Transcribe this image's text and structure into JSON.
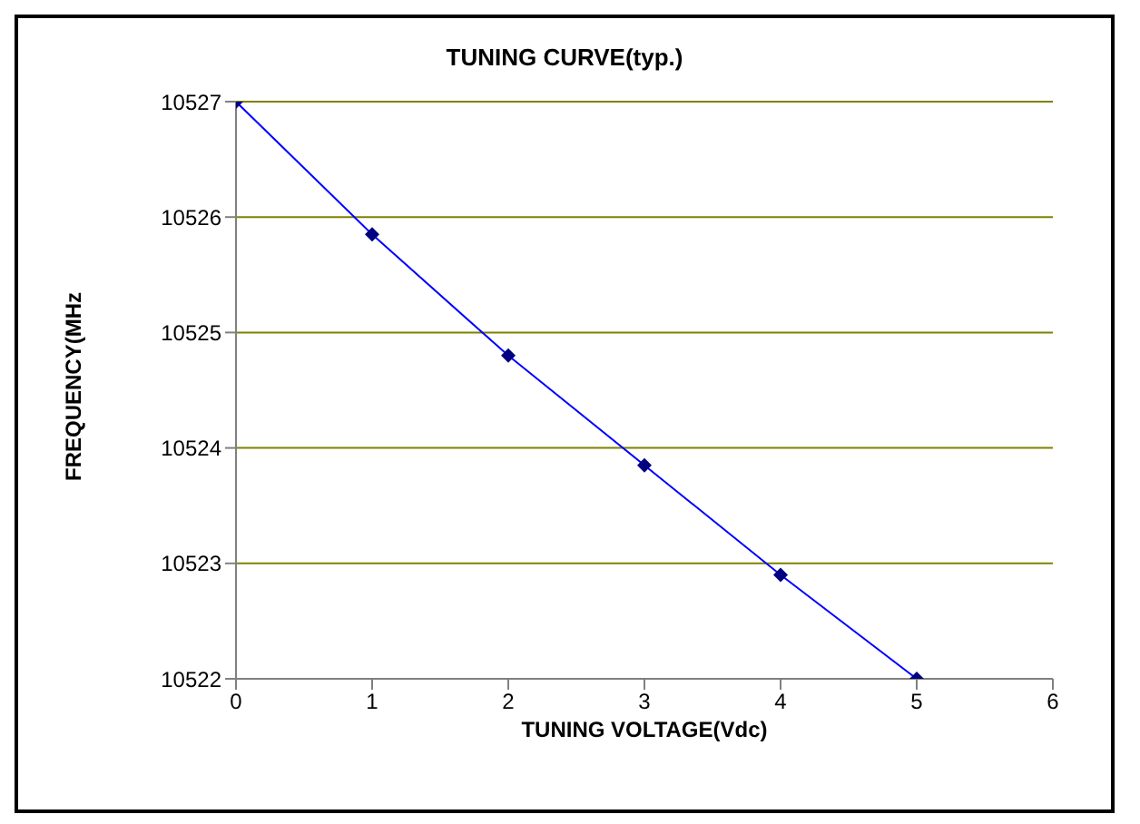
{
  "chart_data": {
    "type": "line",
    "title": "TUNING CURVE(typ.)",
    "xlabel": "TUNING VOLTAGE(Vdc)",
    "ylabel": "FREQUENCY(MHz",
    "x": [
      0,
      1,
      2,
      3,
      4,
      5
    ],
    "series": [
      {
        "color": "#000080",
        "values": [
          10527,
          10525.85,
          10524.8,
          10523.85,
          10522.9,
          10522
        ]
      }
    ],
    "xlim": [
      0,
      6
    ],
    "xticks": [
      0,
      1,
      2,
      3,
      4,
      5,
      6
    ],
    "ylim": [
      10522,
      10527
    ],
    "yticks": [
      10522,
      10523,
      10524,
      10525,
      10526,
      10527
    ],
    "grid": "y",
    "marker": "diamond",
    "line_style": "solid",
    "legend": false
  }
}
